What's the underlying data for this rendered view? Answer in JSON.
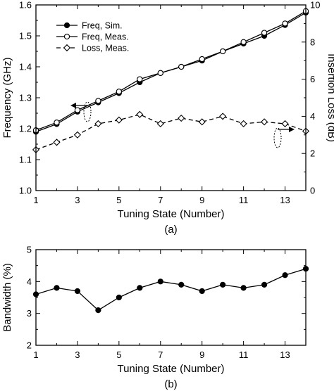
{
  "chart_data": [
    {
      "type": "line",
      "caption": "(a)",
      "xlabel": "Tuning State (Number)",
      "ylabel": "Frequency (GHz)",
      "y2label": "Insertion Loss (dB)",
      "xlim": [
        1,
        14
      ],
      "ylim": [
        1.0,
        1.6
      ],
      "y2lim": [
        0,
        10
      ],
      "xticks": [
        1,
        3,
        5,
        7,
        9,
        11,
        13
      ],
      "yticks": [
        "1.0",
        "1.1",
        "1.2",
        "1.3",
        "1.4",
        "1.5",
        "1.6"
      ],
      "y2ticks": [
        "0",
        "2",
        "4",
        "6",
        "8",
        "10"
      ],
      "grid": false,
      "legend_position": "top-left",
      "x": [
        1,
        2,
        3,
        4,
        5,
        6,
        7,
        8,
        9,
        10,
        11,
        12,
        13,
        14
      ],
      "series": [
        {
          "name": "Freq, Sim.",
          "axis": "left",
          "line": "solid",
          "marker": "filled-circle",
          "values": [
            1.19,
            1.215,
            1.255,
            1.285,
            1.315,
            1.35,
            1.38,
            1.4,
            1.42,
            1.45,
            1.475,
            1.5,
            1.535,
            1.575
          ]
        },
        {
          "name": "Freq, Meas.",
          "axis": "left",
          "line": "solid",
          "marker": "open-circle",
          "values": [
            1.195,
            1.22,
            1.26,
            1.29,
            1.32,
            1.36,
            1.38,
            1.4,
            1.425,
            1.45,
            1.48,
            1.51,
            1.54,
            1.58
          ]
        },
        {
          "name": "Loss, Meas.",
          "axis": "right",
          "line": "dashed",
          "marker": "open-diamond",
          "values": [
            2.2,
            2.6,
            3.0,
            3.6,
            3.8,
            4.1,
            3.6,
            3.9,
            3.7,
            4.0,
            3.6,
            3.7,
            3.6,
            3.2
          ]
        }
      ]
    },
    {
      "type": "line",
      "caption": "(b)",
      "xlabel": "Tuning State (Number)",
      "ylabel": "Bandwidth (%)",
      "xlim": [
        1,
        14
      ],
      "ylim": [
        2,
        5
      ],
      "xticks": [
        1,
        3,
        5,
        7,
        9,
        11,
        13
      ],
      "yticks": [
        "2",
        "3",
        "4",
        "5"
      ],
      "grid": false,
      "x": [
        1,
        2,
        3,
        4,
        5,
        6,
        7,
        8,
        9,
        10,
        11,
        12,
        13,
        14
      ],
      "series": [
        {
          "line": "solid",
          "marker": "filled-circle",
          "values": [
            3.6,
            3.8,
            3.7,
            3.1,
            3.5,
            3.8,
            4.0,
            3.9,
            3.7,
            3.9,
            3.8,
            3.9,
            4.2,
            4.4
          ]
        }
      ]
    }
  ]
}
